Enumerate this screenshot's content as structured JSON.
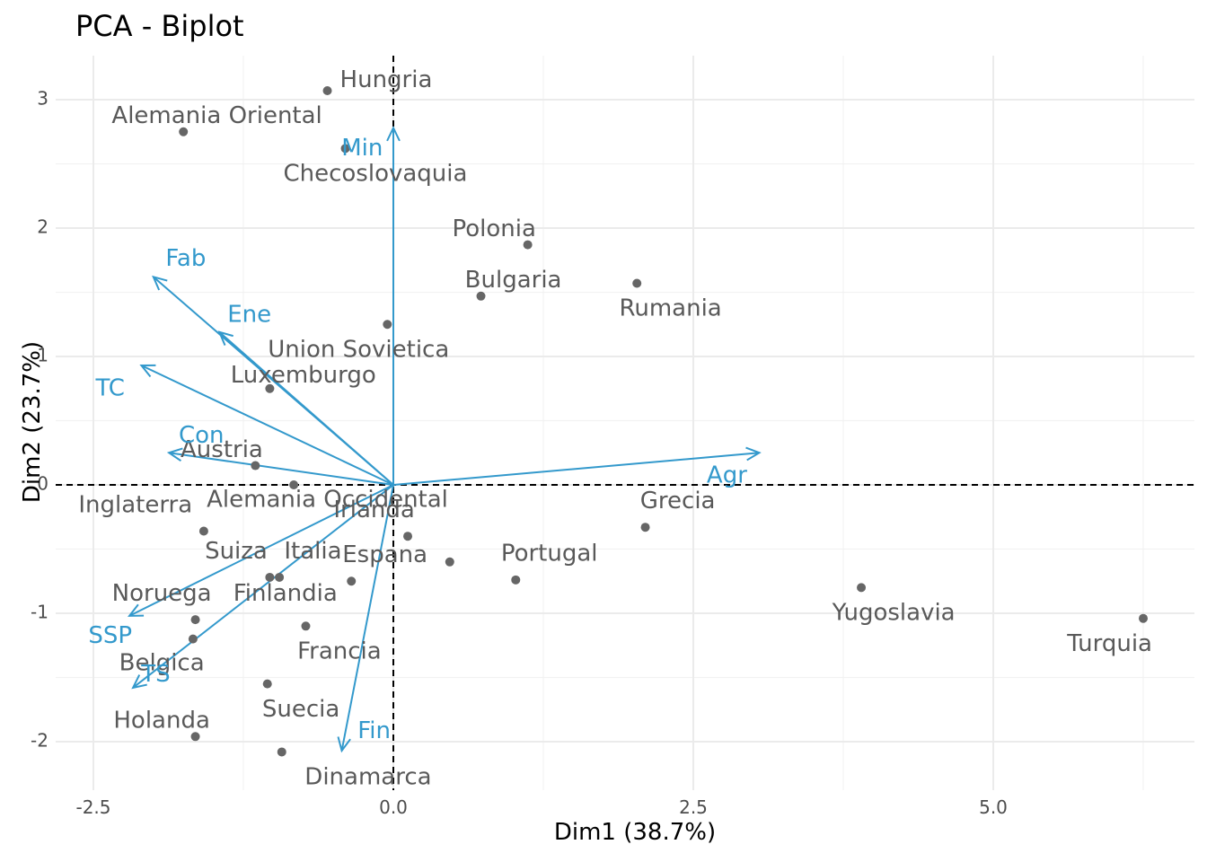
{
  "chart_data": {
    "type": "scatter",
    "title": "PCA - Biplot",
    "xlabel": "Dim1 (38.7%)",
    "ylabel": "Dim2 (23.7%)",
    "xlim": [
      -2.5,
      6.5
    ],
    "ylim": [
      -2.35,
      3.35
    ],
    "xticks": [
      -2.5,
      0.0,
      2.5,
      5.0
    ],
    "xtick_labels": [
      "-2.5",
      "0.0",
      "2.5",
      "5.0"
    ],
    "yticks": [
      -2,
      -1,
      0,
      1,
      2,
      3
    ],
    "ytick_labels": [
      "-2",
      "-1",
      "0",
      "1",
      "2",
      "3"
    ],
    "grid": true,
    "point_color": "#666666",
    "arrow_color": "#3399cc",
    "points": [
      {
        "label": "Hungria",
        "x": -0.55,
        "y": 3.07
      },
      {
        "label": "Alemania Oriental",
        "x": -1.75,
        "y": 2.75
      },
      {
        "label": "Checoslovaquia",
        "x": -0.4,
        "y": 2.62
      },
      {
        "label": "Polonia",
        "x": 1.12,
        "y": 1.87
      },
      {
        "label": "Rumania",
        "x": 2.03,
        "y": 1.57
      },
      {
        "label": "Bulgaria",
        "x": 0.73,
        "y": 1.47
      },
      {
        "label": "Union Sovietica",
        "x": -0.05,
        "y": 1.25
      },
      {
        "label": "Luxemburgo",
        "x": -1.03,
        "y": 0.75
      },
      {
        "label": "Austria",
        "x": -1.15,
        "y": 0.15
      },
      {
        "label": "Alemania Occidental",
        "x": -0.83,
        "y": 0.0
      },
      {
        "label": "Inglaterra",
        "x": -1.58,
        "y": -0.36
      },
      {
        "label": "Irlanda",
        "x": 0.12,
        "y": -0.4
      },
      {
        "label": "Grecia",
        "x": 2.1,
        "y": -0.33
      },
      {
        "label": "Suiza",
        "x": -1.03,
        "y": -0.72
      },
      {
        "label": "Italia",
        "x": -0.95,
        "y": -0.72
      },
      {
        "label": "Espana",
        "x": -0.35,
        "y": -0.75
      },
      {
        "label": "Portugal",
        "x": 0.47,
        "y": -0.6
      },
      {
        "label": "Yugoslavia",
        "x": 1.02,
        "y": -0.74
      },
      {
        "label": "Turquia",
        "x": 3.9,
        "y": -0.8
      },
      {
        "label": "Noruega",
        "x": 6.25,
        "y": -1.04
      },
      {
        "label": "Finlandia",
        "x": -1.65,
        "y": -1.05
      },
      {
        "label": "Belgica",
        "x": -1.67,
        "y": -1.2
      },
      {
        "label": "Francia",
        "x": -0.73,
        "y": -1.1
      },
      {
        "label": "Suecia",
        "x": -1.05,
        "y": -1.55
      },
      {
        "label": "Holanda",
        "x": -1.65,
        "y": -1.96
      },
      {
        "label": "Dinamarca",
        "x": -0.93,
        "y": -2.08
      }
    ],
    "point_labels": [
      {
        "text": "Hungria",
        "x": -0.06,
        "y": 3.15
      },
      {
        "text": "Alemania Oriental",
        "x": -1.47,
        "y": 2.87
      },
      {
        "text": "Checoslovaquia",
        "x": -0.15,
        "y": 2.42
      },
      {
        "text": "Polonia",
        "x": 0.84,
        "y": 1.99
      },
      {
        "text": "Bulgaria",
        "x": 1.0,
        "y": 1.59
      },
      {
        "text": "Rumania",
        "x": 2.31,
        "y": 1.37
      },
      {
        "text": "Union Sovietica",
        "x": -0.29,
        "y": 1.05
      },
      {
        "text": "Luxemburgo",
        "x": -0.75,
        "y": 0.85
      },
      {
        "text": "Austria",
        "x": -1.43,
        "y": 0.27
      },
      {
        "text": "Alemania Occidental",
        "x": -0.55,
        "y": -0.12
      },
      {
        "text": "Irlanda",
        "x": -0.16,
        "y": -0.2
      },
      {
        "text": "Inglaterra",
        "x": -2.15,
        "y": -0.16
      },
      {
        "text": "Grecia",
        "x": 2.37,
        "y": -0.13
      },
      {
        "text": "Suiza",
        "x": -1.31,
        "y": -0.52
      },
      {
        "text": "Italia",
        "x": -0.67,
        "y": -0.52
      },
      {
        "text": "Espana",
        "x": -0.07,
        "y": -0.55
      },
      {
        "text": "Portugal",
        "x": 1.3,
        "y": -0.54
      },
      {
        "text": "Noruega",
        "x": -1.93,
        "y": -0.85
      },
      {
        "text": "Finlandia",
        "x": -0.9,
        "y": -0.85
      },
      {
        "text": "Yugoslavia",
        "x": 4.17,
        "y": -1.0
      },
      {
        "text": "Turquia",
        "x": 5.97,
        "y": -1.24
      },
      {
        "text": "Belgica",
        "x": -1.93,
        "y": -1.39
      },
      {
        "text": "Francia",
        "x": -0.45,
        "y": -1.3
      },
      {
        "text": "Suecia",
        "x": -0.77,
        "y": -1.75
      },
      {
        "text": "Holanda",
        "x": -1.93,
        "y": -1.84
      },
      {
        "text": "Dinamarca",
        "x": -0.21,
        "y": -2.28
      }
    ],
    "variables": [
      {
        "name": "Agr",
        "x": 3.05,
        "y": 0.25,
        "label_x": 2.78,
        "label_y": 0.07
      },
      {
        "name": "Min",
        "x": 0.0,
        "y": 2.78,
        "label_x": -0.26,
        "label_y": 2.62
      },
      {
        "name": "Fab",
        "x": -2.0,
        "y": 1.62,
        "label_x": -1.73,
        "label_y": 1.76
      },
      {
        "name": "Ene",
        "x": -1.45,
        "y": 1.19,
        "label_x": -1.2,
        "label_y": 1.32
      },
      {
        "name": "TC",
        "x": -2.1,
        "y": 0.93,
        "label_x": -2.36,
        "label_y": 0.75
      },
      {
        "name": "Con",
        "x": -1.87,
        "y": 0.25,
        "label_x": -1.6,
        "label_y": 0.38
      },
      {
        "name": "SSP",
        "x": -2.2,
        "y": -1.02,
        "label_x": -2.36,
        "label_y": -1.18
      },
      {
        "name": "TS",
        "x": -2.17,
        "y": -1.58,
        "label_x": -1.98,
        "label_y": -1.48
      },
      {
        "name": "Fin",
        "x": -0.43,
        "y": -2.07,
        "label_x": -0.16,
        "label_y": -1.92
      }
    ]
  }
}
